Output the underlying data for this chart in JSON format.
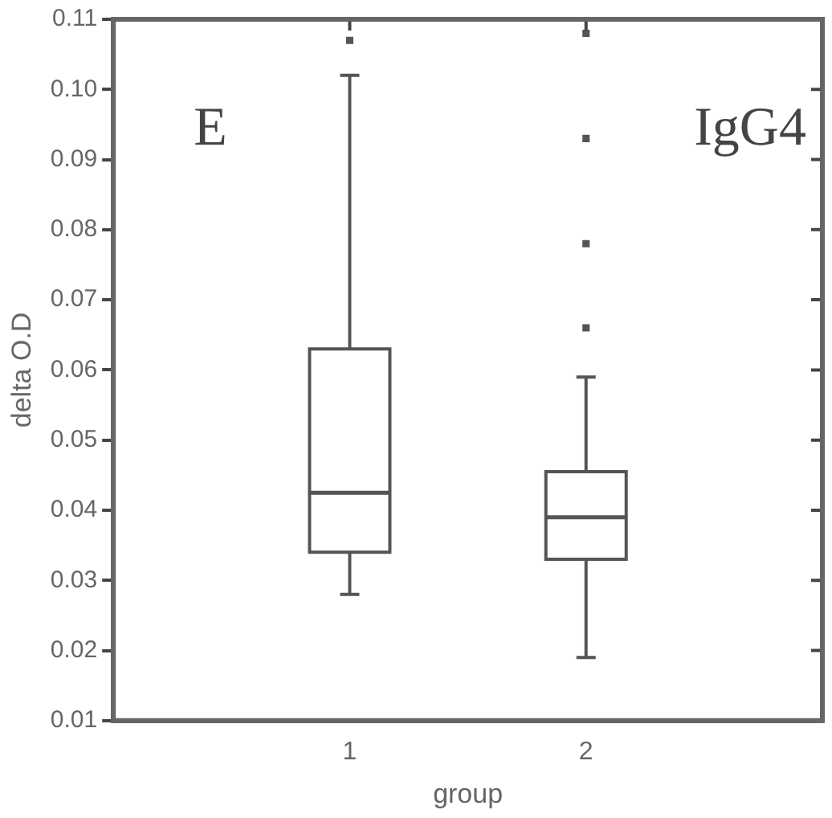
{
  "chart_data": {
    "type": "box",
    "xlabel": "group",
    "ylabel": "delta O.D",
    "categories": [
      "1",
      "2"
    ],
    "boxes": [
      {
        "low": 0.028,
        "q1": 0.034,
        "median": 0.0425,
        "q3": 0.063,
        "high": 0.102,
        "outliers": [
          0.107
        ]
      },
      {
        "low": 0.019,
        "q1": 0.033,
        "median": 0.039,
        "q3": 0.0455,
        "high": 0.059,
        "outliers": [
          0.108,
          0.093,
          0.078,
          0.066
        ]
      }
    ],
    "color": "#555555",
    "ylim": [
      0.01,
      0.11
    ],
    "yticks": [
      0.01,
      0.02,
      0.03,
      0.04,
      0.05,
      0.06,
      0.07,
      0.08,
      0.09,
      {
        "value": 0.1,
        "label": "0.10"
      },
      0.11
    ],
    "grid": false,
    "annotations": [
      "E",
      "IgG4"
    ]
  }
}
